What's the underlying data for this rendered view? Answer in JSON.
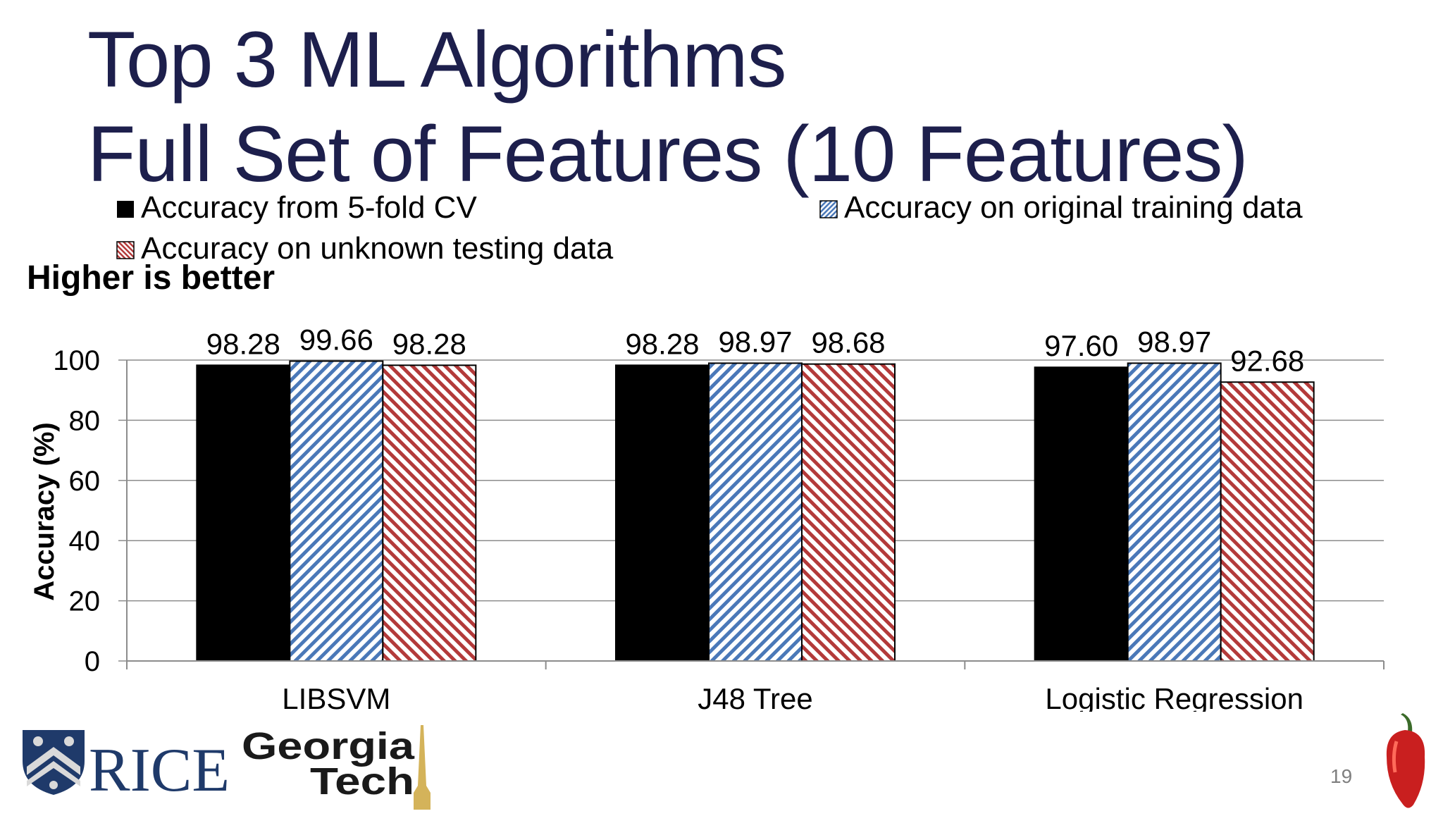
{
  "slide": {
    "title_line1": "Top 3 ML Algorithms",
    "title_line2": "Full Set of Features (10 Features)",
    "page_number": "19"
  },
  "logos": {
    "rice_text": "RICE",
    "gatech_line1": "Georgia",
    "gatech_line2": "Tech"
  },
  "colors": {
    "title": "#1d1f4c",
    "cv": "#000000",
    "training": "#4a78b8",
    "testing": "#b33a3a"
  },
  "chart_data": {
    "type": "bar",
    "annotation": "Higher is better",
    "ylabel": "Accuracy (%)",
    "xlabel": "",
    "ylim": [
      0,
      100
    ],
    "yticks": [
      0,
      20,
      40,
      60,
      80,
      100
    ],
    "grid": true,
    "legend_position": "top",
    "categories": [
      "LIBSVM",
      "J48 Tree",
      "Logistic Regression"
    ],
    "series": [
      {
        "name": "Accuracy from 5-fold CV",
        "values": [
          98.28,
          98.28,
          97.6
        ],
        "labels": [
          "98.28",
          "98.28",
          "97.60"
        ],
        "pattern": "solid"
      },
      {
        "name": "Accuracy on original training data",
        "values": [
          99.66,
          98.97,
          98.97
        ],
        "labels": [
          "99.66",
          "98.97",
          "98.97"
        ],
        "pattern": "blue-diagonal"
      },
      {
        "name": "Accuracy on unknown testing data",
        "values": [
          98.28,
          98.68,
          92.68
        ],
        "labels": [
          "98.28",
          "98.68",
          "92.68"
        ],
        "pattern": "red-diagonal"
      }
    ]
  }
}
